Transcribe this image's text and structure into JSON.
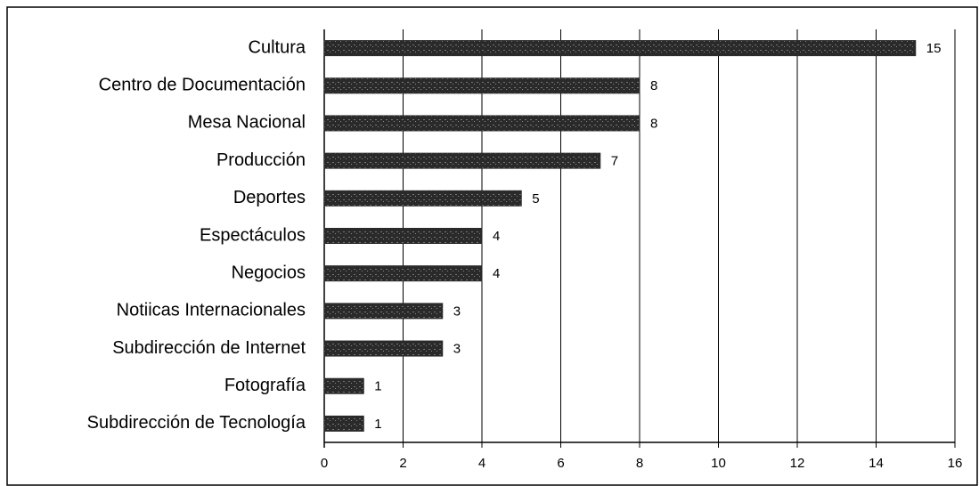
{
  "chart_data": {
    "type": "bar",
    "orientation": "horizontal",
    "categories": [
      "Cultura",
      "Centro de Documentación",
      "Mesa Nacional",
      "Producción",
      "Deportes",
      "Espectáculos",
      "Negocios",
      "Notiicas Internacionales",
      "Subdirección de Internet",
      "Fotografía",
      "Subdirección de Tecnología"
    ],
    "values": [
      15,
      8,
      8,
      7,
      5,
      4,
      4,
      3,
      3,
      1,
      1
    ],
    "color": "#2a2a2a",
    "xlim": [
      0,
      16
    ],
    "xticks": [
      0,
      2,
      4,
      6,
      8,
      10,
      12,
      14,
      16
    ],
    "grid": true
  }
}
